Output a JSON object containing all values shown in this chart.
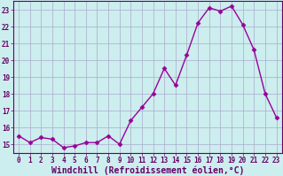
{
  "x": [
    0,
    1,
    2,
    3,
    4,
    5,
    6,
    7,
    8,
    9,
    10,
    11,
    12,
    13,
    14,
    15,
    16,
    17,
    18,
    19,
    20,
    21,
    22,
    23
  ],
  "y": [
    15.5,
    15.1,
    15.4,
    15.3,
    14.8,
    14.9,
    15.1,
    15.1,
    15.5,
    15.0,
    16.4,
    17.2,
    18.0,
    19.5,
    18.5,
    20.3,
    22.2,
    23.1,
    22.9,
    23.2,
    22.1,
    20.6,
    18.0,
    16.6
  ],
  "line_color": "#990099",
  "marker": "D",
  "marker_size": 2.5,
  "bg_color": "#cceeee",
  "grid_color": "#aaaacc",
  "xlabel": "Windchill (Refroidissement éolien,°C)",
  "xlabel_color": "#660066",
  "ylim": [
    14.5,
    23.5
  ],
  "xlim": [
    -0.5,
    23.5
  ],
  "yticks": [
    15,
    16,
    17,
    18,
    19,
    20,
    21,
    22,
    23
  ],
  "xticks": [
    0,
    1,
    2,
    3,
    4,
    5,
    6,
    7,
    8,
    9,
    10,
    11,
    12,
    13,
    14,
    15,
    16,
    17,
    18,
    19,
    20,
    21,
    22,
    23
  ],
  "tick_color": "#660066",
  "tick_fontsize": 5.5,
  "xlabel_fontsize": 7.0,
  "line_width": 1.0
}
